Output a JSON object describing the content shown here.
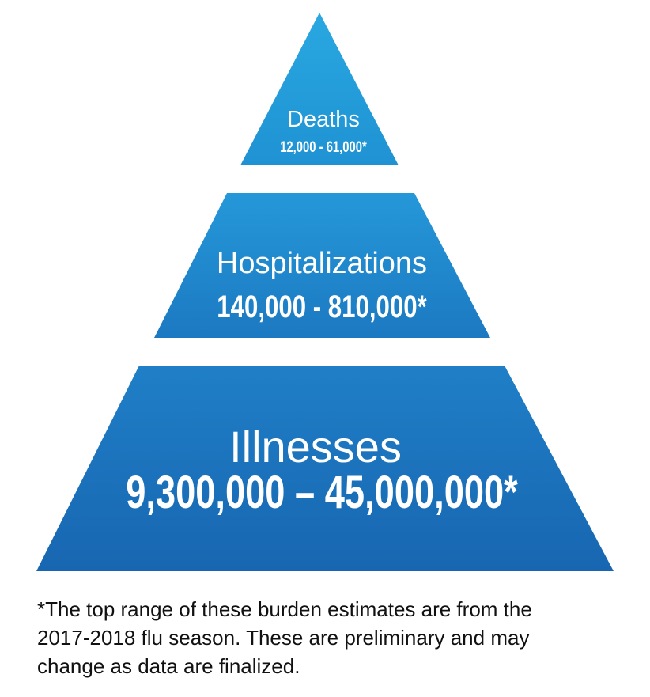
{
  "tiers": {
    "deaths": {
      "title": "Deaths",
      "range": "12,000 - 61,000*"
    },
    "hospitalizations": {
      "title": "Hospitalizations",
      "range": "140,000 - 810,000*"
    },
    "illnesses": {
      "title": "Illnesses",
      "range": "9,300,000 – 45,000,000*"
    }
  },
  "footnote": {
    "line1": "*The top range of these burden estimates are from the",
    "line2": "2017-2018 flu season. These are preliminary and may",
    "line3": "change as data are finalized."
  },
  "colors": {
    "top_light": "#29a8e1",
    "top_dark": "#1f8fd0",
    "mid_light": "#2496d8",
    "mid_dark": "#1b76c0",
    "bottom_light": "#1f80c8",
    "bottom_dark": "#1767b2"
  }
}
